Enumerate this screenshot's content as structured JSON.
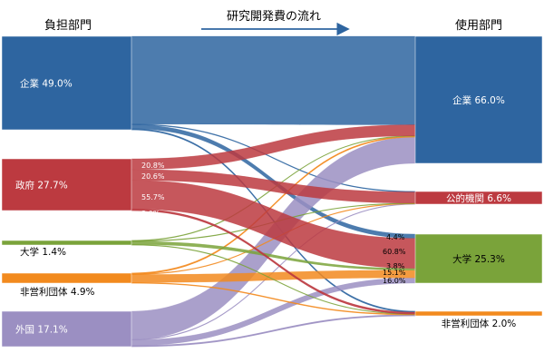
{
  "headings": {
    "left": "負担部門",
    "right": "使用部門",
    "flow": "研究開発費の流れ"
  },
  "chart_data": {
    "type": "sankey",
    "sources": [
      {
        "id": "s_corp",
        "name": "企業",
        "value": 49.0,
        "label": "企業 49.0%",
        "color": "#2e65a0"
      },
      {
        "id": "s_gov",
        "name": "政府",
        "value": 27.7,
        "label": "政府 27.7%",
        "color": "#bc3a40"
      },
      {
        "id": "s_univ",
        "name": "大学",
        "value": 1.4,
        "label": "大学 1.4%",
        "color": "#7aa33a"
      },
      {
        "id": "s_npo",
        "name": "非営利団体",
        "value": 4.9,
        "label": "非営利団体 4.9%",
        "color": "#f28a1e"
      },
      {
        "id": "s_for",
        "name": "外国",
        "value": 17.1,
        "label": "外国 17.1%",
        "color": "#9b8fc2"
      }
    ],
    "targets": [
      {
        "id": "t_corp",
        "name": "企業",
        "value": 66.0,
        "label": "企業 66.0%",
        "color": "#2e65a0"
      },
      {
        "id": "t_pub",
        "name": "公的機関",
        "value": 6.6,
        "label": "公的機関 6.6%",
        "color": "#bc3a40"
      },
      {
        "id": "t_univ",
        "name": "大学",
        "value": 25.3,
        "label": "大学 25.3%",
        "color": "#7aa33a"
      },
      {
        "id": "t_npo",
        "name": "非営利団体",
        "value": 2.0,
        "label": "非営利団体 2.0%",
        "color": "#f28a1e"
      }
    ],
    "flows": [
      {
        "from": "s_corp",
        "to": "t_corp",
        "value": 94.0
      },
      {
        "from": "s_corp",
        "to": "t_pub",
        "value": 0.5
      },
      {
        "from": "s_corp",
        "to": "t_univ",
        "value": 4.4
      },
      {
        "from": "s_corp",
        "to": "t_npo",
        "value": 1.1
      },
      {
        "from": "s_gov",
        "to": "t_corp",
        "value": 20.8
      },
      {
        "from": "s_gov",
        "to": "t_pub",
        "value": 20.6
      },
      {
        "from": "s_gov",
        "to": "t_univ",
        "value": 55.7
      },
      {
        "from": "s_gov",
        "to": "t_npo",
        "value": 3.0
      },
      {
        "from": "s_univ",
        "to": "t_corp",
        "value": 10.0
      },
      {
        "from": "s_univ",
        "to": "t_pub",
        "value": 10.0
      },
      {
        "from": "s_univ",
        "to": "t_univ",
        "value": 70.0
      },
      {
        "from": "s_univ",
        "to": "t_npo",
        "value": 10.0
      },
      {
        "from": "s_npo",
        "to": "t_corp",
        "value": 10.0
      },
      {
        "from": "s_npo",
        "to": "t_pub",
        "value": 4.0
      },
      {
        "from": "s_npo",
        "to": "t_univ",
        "value": 80.0
      },
      {
        "from": "s_npo",
        "to": "t_npo",
        "value": 6.0
      },
      {
        "from": "s_for",
        "to": "t_corp",
        "value": 80.0
      },
      {
        "from": "s_for",
        "to": "t_pub",
        "value": 1.0
      },
      {
        "from": "s_for",
        "to": "t_univ",
        "value": 16.0
      },
      {
        "from": "s_for",
        "to": "t_npo",
        "value": 3.0
      }
    ],
    "annotations": [
      {
        "id": "gov_corp",
        "text": "20.8%"
      },
      {
        "id": "gov_pub",
        "text": "20.6%"
      },
      {
        "id": "gov_univ",
        "text": "55.7%"
      },
      {
        "id": "gov_npo",
        "text": "3.0%"
      },
      {
        "id": "univ_corp",
        "text": "4.4%"
      },
      {
        "id": "univ_gov",
        "text": "60.8%"
      },
      {
        "id": "univ_univ",
        "text": "3.8%"
      },
      {
        "id": "univ_npo",
        "text": "15.1%"
      },
      {
        "id": "univ_for",
        "text": "16.0%"
      }
    ]
  }
}
